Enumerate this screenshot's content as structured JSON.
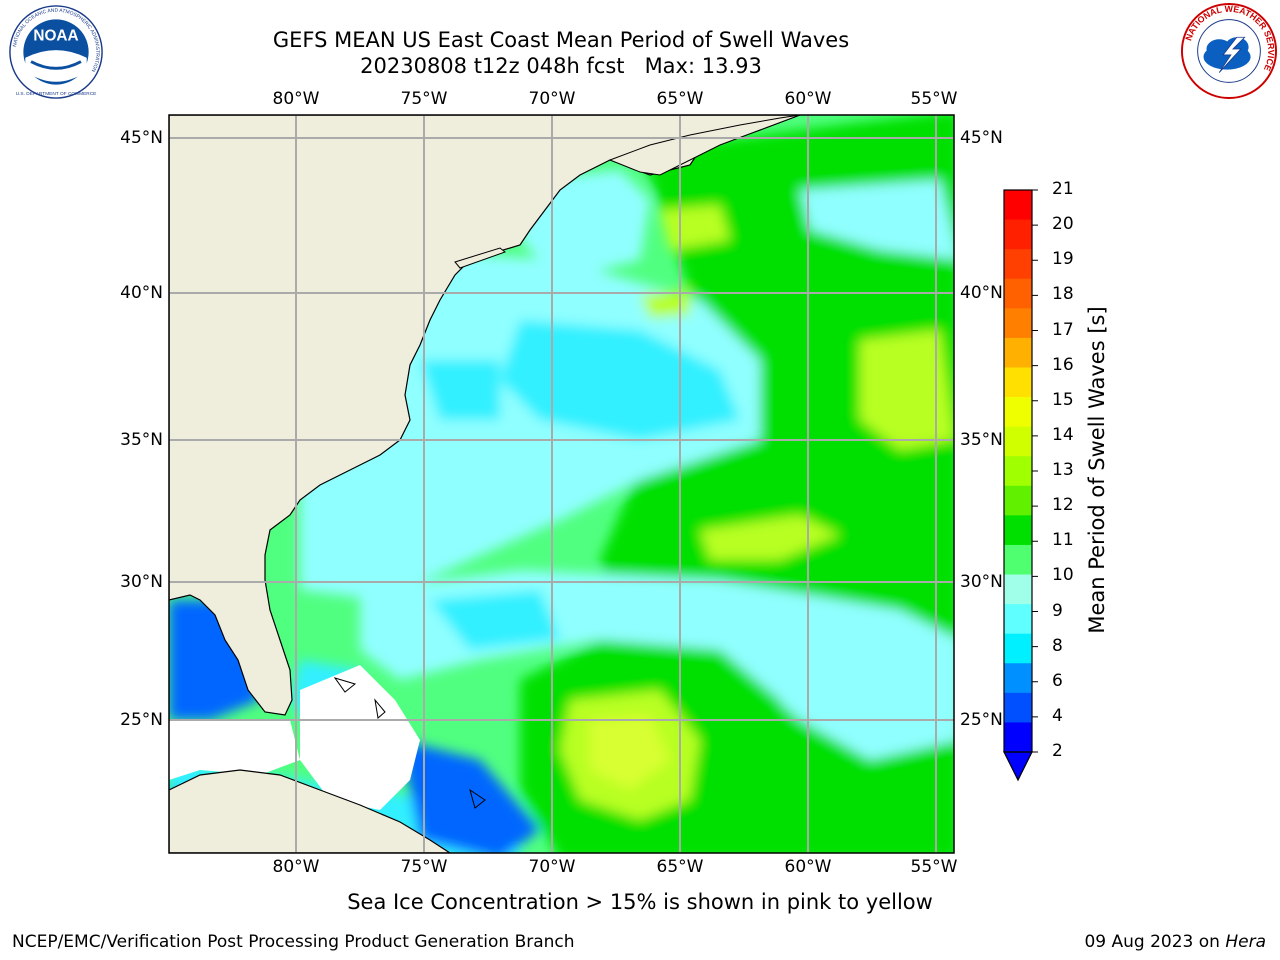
{
  "title": {
    "line1": "GEFS MEAN US East Coast Mean Period of Swell Waves",
    "line2": "20230808 t12z 048h fcst   Max: 13.93"
  },
  "map": {
    "lon_ticks": [
      "80°W",
      "75°W",
      "70°W",
      "65°W",
      "60°W",
      "55°W"
    ],
    "lat_ticks": [
      "45°N",
      "40°N",
      "35°N",
      "30°N",
      "25°N"
    ]
  },
  "colorbar": {
    "label": "Mean Period of Swell Waves [s]",
    "ticks": [
      "21",
      "20",
      "19",
      "18",
      "17",
      "16",
      "15",
      "14",
      "13",
      "12",
      "11",
      "10",
      "9",
      "8",
      "6",
      "4",
      "2"
    ],
    "colors": [
      "#ff0000",
      "#ff2000",
      "#ff4000",
      "#ff6000",
      "#ff8000",
      "#ffb000",
      "#ffe000",
      "#f0ff00",
      "#d0ff00",
      "#a0ff00",
      "#60f000",
      "#00e000",
      "#50ff70",
      "#a0ffe8",
      "#60ffff",
      "#00f0ff",
      "#0090ff",
      "#0050ff",
      "#0000ff"
    ]
  },
  "note": "Sea Ice Concentration > 15% is shown in pink to yellow",
  "footer": {
    "left": "NCEP/EMC/Verification Post Processing Product Generation Branch",
    "right_date": "09 Aug 2023 on ",
    "right_machine": "Hera"
  },
  "logos": {
    "noaa_text": "NOAA",
    "noaa_ring_text": "NATIONAL OCEANIC AND ATMOSPHERIC ADMINISTRATION",
    "noaa_ring_bottom": "U.S. DEPARTMENT OF COMMERCE",
    "nws_ring_text": "NATIONAL WEATHER SERVICE"
  },
  "colors": {
    "land": "#efeddc",
    "grid": "#aaaaaa",
    "blue_low": "#0066ff",
    "cyan": "#30f0ff",
    "light_cyan": "#90ffff",
    "green_light": "#50ff80",
    "green": "#00e000",
    "yellow_green": "#b8ff20"
  }
}
